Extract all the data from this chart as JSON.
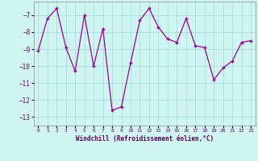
{
  "x": [
    0,
    1,
    2,
    3,
    4,
    5,
    6,
    7,
    8,
    9,
    10,
    11,
    12,
    13,
    14,
    15,
    16,
    17,
    18,
    19,
    20,
    21,
    22,
    23
  ],
  "y": [
    -9.1,
    -7.2,
    -6.6,
    -8.9,
    -10.3,
    -7.0,
    -10.0,
    -7.8,
    -12.6,
    -12.4,
    -9.8,
    -7.3,
    -6.6,
    -7.7,
    -8.4,
    -8.6,
    -7.2,
    -8.8,
    -8.9,
    -10.8,
    -10.1,
    -9.7,
    -8.6,
    -8.5
  ],
  "xlabel": "Windchill (Refroidissement éolien,°C)",
  "ylim": [
    -13.5,
    -6.2
  ],
  "xlim": [
    -0.5,
    23.5
  ],
  "yticks": [
    -7,
    -8,
    -9,
    -10,
    -11,
    -12,
    -13
  ],
  "xticks": [
    0,
    1,
    2,
    3,
    4,
    5,
    6,
    7,
    8,
    9,
    10,
    11,
    12,
    13,
    14,
    15,
    16,
    17,
    18,
    19,
    20,
    21,
    22,
    23
  ],
  "line_color": "#990099",
  "bg_color": "#cef5f0",
  "grid_color": "#aadddd"
}
